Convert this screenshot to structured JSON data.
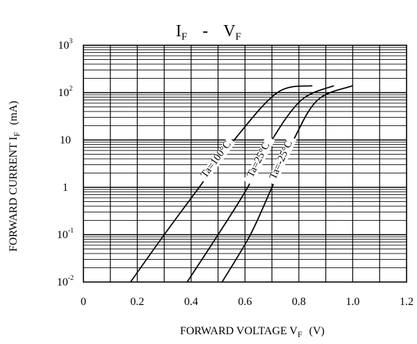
{
  "chart_data": {
    "type": "line",
    "title": {
      "main_1": "I",
      "sub_1": "F",
      "separator": "-",
      "main_2": "V",
      "sub_2": "F"
    },
    "xlabel": {
      "text": "FORWARD VOLTAGE V",
      "sub": "F",
      "unit": "(V)"
    },
    "ylabel": {
      "text": "FORWARD CURRENT I",
      "sub": "F",
      "unit": "(mA)"
    },
    "x_scale": "linear",
    "y_scale": "log",
    "xlim": [
      0,
      1.2
    ],
    "ylim": [
      0.01,
      1000
    ],
    "grid": true,
    "x_ticks": [
      "0",
      "0.2",
      "0.4",
      "0.6",
      "0.8",
      "1.0",
      "1.2"
    ],
    "y_ticks": [
      {
        "base": "10",
        "exp": "-2"
      },
      {
        "base": "10",
        "exp": "-1"
      },
      {
        "base": "1",
        "exp": ""
      },
      {
        "base": "10",
        "exp": ""
      },
      {
        "base": "10",
        "exp": "2"
      },
      {
        "base": "10",
        "exp": "3"
      }
    ],
    "series": [
      {
        "name": "Ta=100°C",
        "points": [
          [
            0.175,
            0.01
          ],
          [
            0.3,
            0.1
          ],
          [
            0.43,
            1
          ],
          [
            0.56,
            10
          ],
          [
            0.72,
            100
          ],
          [
            0.85,
            140
          ]
        ]
      },
      {
        "name": "Ta=25°C",
        "points": [
          [
            0.385,
            0.01
          ],
          [
            0.5,
            0.1
          ],
          [
            0.61,
            1
          ],
          [
            0.7,
            10
          ],
          [
            0.81,
            70
          ],
          [
            0.93,
            140
          ]
        ]
      },
      {
        "name": "Ta=-25°C",
        "points": [
          [
            0.515,
            0.01
          ],
          [
            0.62,
            0.1
          ],
          [
            0.7,
            1
          ],
          [
            0.78,
            10
          ],
          [
            0.87,
            70
          ],
          [
            1.0,
            140
          ]
        ]
      }
    ]
  }
}
